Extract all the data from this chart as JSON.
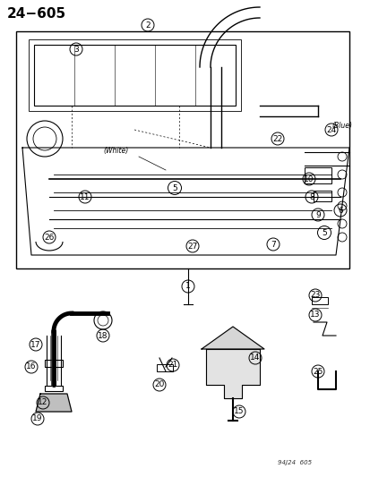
{
  "title": "24−605",
  "watermark": "94J24  605",
  "bg_color": "#ffffff",
  "fig_width": 4.14,
  "fig_height": 5.33,
  "dpi": 100,
  "annotations": {
    "white_label": "(White)",
    "blue_label": "(Blue)"
  },
  "part_numbers": [
    1,
    2,
    3,
    4,
    5,
    6,
    7,
    8,
    9,
    10,
    11,
    12,
    13,
    14,
    15,
    16,
    17,
    18,
    19,
    20,
    21,
    22,
    23,
    24,
    25,
    26,
    27
  ]
}
